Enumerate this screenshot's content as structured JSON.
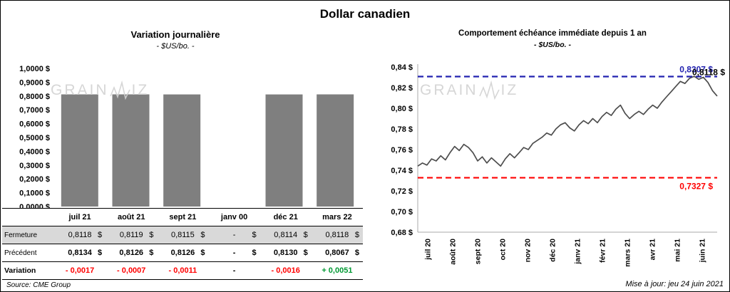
{
  "page_title": "Dollar canadien",
  "watermark": {
    "prefix": "GRAIN",
    "suffix": "IZ"
  },
  "left_panel": {
    "title": "Variation journalière",
    "subtitle": "- $US/bo. -",
    "source": "Source: CME Group"
  },
  "right_panel": {
    "title": "Comportement échéance immédiate depuis 1 an",
    "subtitle": "- $US/bo. -",
    "updated": "Mise à jour: jeu 24 juin 2021"
  },
  "table": {
    "header": [
      "juil 21",
      "août 21",
      "sept 21",
      "janv 00",
      "déc 21",
      "mars 22"
    ],
    "rows": [
      {
        "label": "Fermeture",
        "variant": "fermeture",
        "suffix": "$",
        "cells": [
          "0,8118",
          "0,8119",
          "0,8115",
          "-",
          "0,8114",
          "0,8118"
        ]
      },
      {
        "label": "Précédent",
        "variant": "precedent",
        "suffix": "$",
        "cells": [
          "0,8134",
          "0,8126",
          "0,8126",
          "-",
          "0,8130",
          "0,8067"
        ]
      },
      {
        "label": "Variation",
        "variant": "variation",
        "suffix": "",
        "cells": [
          "- 0,0017",
          "- 0,0007",
          "- 0,0011",
          "-",
          "- 0,0016",
          "+ 0,0051"
        ]
      }
    ]
  },
  "colors": {
    "bar": "#7f7f7f",
    "line": "#4d4d4d",
    "resistance": "#2222b0",
    "support": "#ff0000",
    "negative": "#ff0000",
    "positive": "#009933",
    "fermeture_row_bg": "#d9d9d9"
  },
  "chart_data": [
    {
      "type": "bar",
      "title": "Variation journalière",
      "subtitle": "- $US/bo. -",
      "categories": [
        "juil 21",
        "août 21",
        "sept 21",
        "janv 00",
        "déc 21",
        "mars 22"
      ],
      "values": [
        0.8118,
        0.8119,
        0.8115,
        null,
        0.8114,
        0.8118
      ],
      "ylim": [
        0,
        1
      ],
      "ytick_values": [
        1.0,
        0.9,
        0.8,
        0.7,
        0.6,
        0.5,
        0.4,
        0.3,
        0.2,
        0.1,
        0.0
      ],
      "ytick_labels": [
        "1,0000 $",
        "0,9000 $",
        "0,8000 $",
        "0,7000 $",
        "0,6000 $",
        "0,5000 $",
        "0,4000 $",
        "0,3000 $",
        "0,2000 $",
        "0,1000 $",
        "0,0000 $"
      ],
      "grid": false,
      "legend": "none"
    },
    {
      "type": "line",
      "title": "Comportement échéance immédiate depuis 1 an",
      "subtitle": "- $US/bo. -",
      "x_tick_labels": [
        "juil 20",
        "août 20",
        "sept 20",
        "oct 20",
        "nov 20",
        "déc 20",
        "janv 21",
        "févr 21",
        "mars 21",
        "avr 21",
        "mai 21",
        "juin 21"
      ],
      "ylim": [
        0.68,
        0.84
      ],
      "ytick_values": [
        0.84,
        0.82,
        0.8,
        0.78,
        0.76,
        0.74,
        0.72,
        0.7,
        0.68
      ],
      "ytick_labels": [
        "0,84 $",
        "0,82 $",
        "0,80 $",
        "0,78 $",
        "0,76 $",
        "0,74 $",
        "0,72 $",
        "0,70 $",
        "0,68 $"
      ],
      "grid": false,
      "legend": "none",
      "series": [
        {
          "name": "$US/bo.",
          "values": [
            0.744,
            0.747,
            0.745,
            0.751,
            0.749,
            0.754,
            0.75,
            0.757,
            0.763,
            0.759,
            0.765,
            0.762,
            0.757,
            0.749,
            0.753,
            0.747,
            0.752,
            0.748,
            0.744,
            0.751,
            0.756,
            0.752,
            0.757,
            0.762,
            0.76,
            0.766,
            0.769,
            0.772,
            0.776,
            0.774,
            0.78,
            0.784,
            0.786,
            0.781,
            0.778,
            0.784,
            0.788,
            0.785,
            0.79,
            0.786,
            0.792,
            0.796,
            0.793,
            0.799,
            0.803,
            0.795,
            0.79,
            0.794,
            0.797,
            0.794,
            0.799,
            0.803,
            0.8,
            0.806,
            0.811,
            0.816,
            0.821,
            0.826,
            0.824,
            0.829,
            0.831,
            0.828,
            0.83,
            0.825,
            0.817,
            0.8118
          ]
        }
      ],
      "reference_lines": [
        {
          "role": "resistance",
          "value": 0.8307,
          "label": "0,8307 $",
          "color": "#2222b0",
          "style": "dashed",
          "label_position": "above"
        },
        {
          "role": "support",
          "value": 0.7327,
          "label": "0,7327 $",
          "color": "#ff0000",
          "style": "dashed",
          "label_position": "below"
        }
      ],
      "last_value_label": {
        "value": 0.8118,
        "label": "0,8118 $",
        "color": "#000000"
      }
    }
  ]
}
